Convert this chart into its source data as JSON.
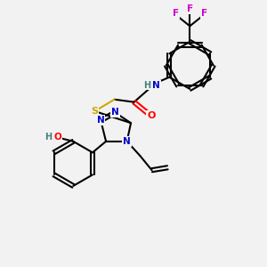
{
  "bg_color": "#f2f2f2",
  "atom_colors": {
    "C": "#000000",
    "N": "#0000cc",
    "O": "#ff0000",
    "S": "#ccaa00",
    "F": "#cc00cc",
    "H_color": "#408080"
  },
  "bond_color": "#000000"
}
